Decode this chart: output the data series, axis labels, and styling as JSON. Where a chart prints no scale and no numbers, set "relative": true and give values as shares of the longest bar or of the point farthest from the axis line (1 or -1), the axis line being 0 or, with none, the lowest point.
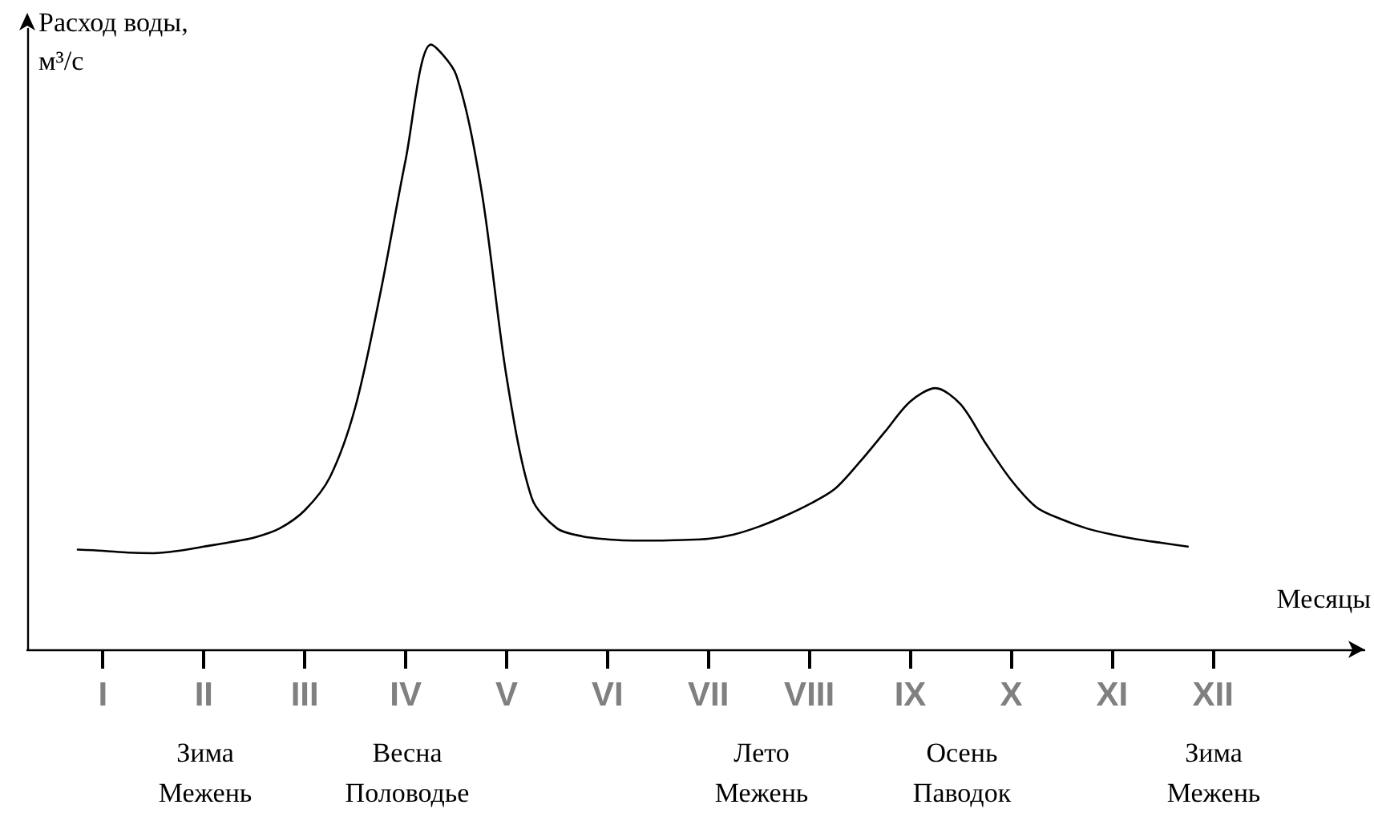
{
  "chart_data": {
    "type": "line",
    "relative": true,
    "ylabel": "Расход воды,\nм³/с",
    "xlabel": "Месяцы",
    "categories": [
      null,
      null,
      null,
      "I",
      null,
      null,
      null,
      "II",
      null,
      null,
      null,
      "III",
      null,
      null,
      null,
      "IV",
      null,
      null,
      null,
      "V",
      null,
      null,
      null,
      "VI",
      null,
      null,
      null,
      "VII",
      null,
      null,
      null,
      "VIII",
      null,
      null,
      null,
      "IX",
      null,
      null,
      null,
      "X",
      null,
      null,
      null,
      "XI",
      null,
      null,
      null,
      "XII",
      null,
      null,
      null,
      null,
      null,
      null
    ],
    "series": [
      {
        "color": "#000000",
        "values": [
          null,
          null,
          0.165,
          0.163,
          0.16,
          0.159,
          0.163,
          0.17,
          0.177,
          0.185,
          0.2,
          0.23,
          0.285,
          0.4,
          0.59,
          0.81,
          1.0,
          0.95,
          0.76,
          0.45,
          0.25,
          0.2,
          0.187,
          0.182,
          0.18,
          0.18,
          0.181,
          0.183,
          0.19,
          0.203,
          0.22,
          0.24,
          0.265,
          0.31,
          0.36,
          0.41,
          0.432,
          0.405,
          0.34,
          0.28,
          0.235,
          0.215,
          0.2,
          0.19,
          0.182,
          0.176,
          0.17,
          null,
          null,
          null,
          null,
          null,
          null,
          null
        ]
      }
    ],
    "annotations": [
      "Зима\nМежень",
      "Весна\nПоловодье",
      "Лето\nМежень",
      "Осень\nПаводок",
      "Зима\nМежень"
    ],
    "marker": "none",
    "line_style": "solid",
    "grid": false
  }
}
